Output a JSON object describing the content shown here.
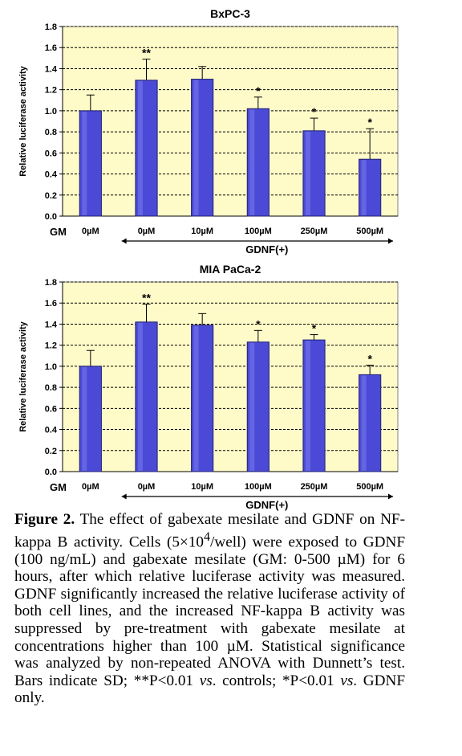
{
  "charts": [
    {
      "type": "bar",
      "title": "BxPC-3",
      "ylabel": "Relative luciferase activity",
      "ylim": [
        0,
        1.8
      ],
      "yticks": [
        "0.0",
        "0.2",
        "0.4",
        "0.6",
        "0.8",
        "1.0",
        "1.2",
        "1.4",
        "1.6",
        "1.8"
      ],
      "row_label": "GM",
      "categories": [
        "0µM",
        "0µM",
        "10µM",
        "100µM",
        "250µM",
        "500µM"
      ],
      "values": [
        1.0,
        1.29,
        1.3,
        1.02,
        0.81,
        0.54
      ],
      "errors": [
        0.15,
        0.2,
        0.12,
        0.11,
        0.12,
        0.29
      ],
      "significance": [
        "",
        "**",
        "",
        "*",
        "*",
        "*"
      ],
      "group_label": "GDNF(+)"
    },
    {
      "type": "bar",
      "title": "MIA PaCa-2",
      "ylabel": "Relative luciferase activity",
      "ylim": [
        0,
        1.8
      ],
      "yticks": [
        "0.0",
        "0.2",
        "0.4",
        "0.6",
        "0.8",
        "1.0",
        "1.2",
        "1.4",
        "1.6",
        "1.8"
      ],
      "row_label": "GM",
      "categories": [
        "0µM",
        "0µM",
        "10µM",
        "100µM",
        "250µM",
        "500µM"
      ],
      "values": [
        1.0,
        1.42,
        1.39,
        1.23,
        1.25,
        0.92
      ],
      "errors": [
        0.15,
        0.17,
        0.11,
        0.11,
        0.05,
        0.09
      ],
      "significance": [
        "",
        "**",
        "",
        "*",
        "*",
        "*"
      ],
      "group_label": "GDNF(+)"
    }
  ],
  "caption": {
    "label": "Figure 2.",
    "text_before_sup": " The effect of gabexate mesilate and GDNF on NF-kappa B activity. Cells (5×10",
    "sup": "4",
    "text_mid1": "/well) were exposed to GDNF (100 ng/mL) and gabexate mesilate (GM: 0-500 µM) for 6 hours, after which relative luciferase activity was measured. GDNF significantly increased the relative luciferase activity of both cell lines, and the increased NF-kappa B activity was suppressed by pre-treatment with gabexate mesilate at concentrations higher than 100 µM. Statistical significance was analyzed by non-repeated ANOVA with Dunnett’s test. Bars indicate SD; **P<0.01 ",
    "vs1": "vs",
    "text_mid2": ". controls; *P<0.01 ",
    "vs2": "vs",
    "text_end": ". GDNF only."
  },
  "colors": {
    "bar_fill": "#4a4ad6",
    "bar_edge": "#202070",
    "plot_bg": "#fffbc8",
    "grid": "#000000"
  }
}
